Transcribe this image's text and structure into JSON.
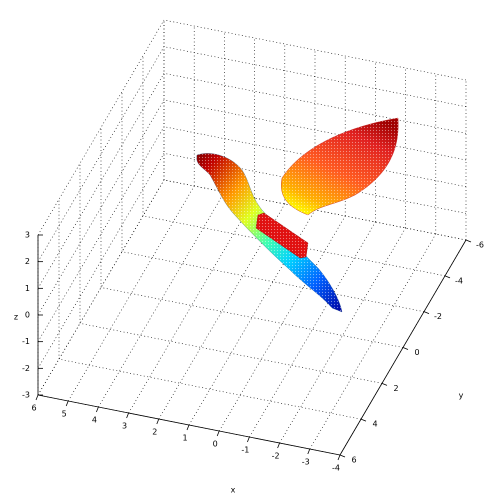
{
  "chart_data": {
    "type": "surface3d",
    "xlabel": "x",
    "ylabel": "y",
    "zlabel": "z",
    "x_ticks": [
      "-4",
      "-3",
      "-2",
      "-1",
      "0",
      "1",
      "2",
      "3",
      "4",
      "5",
      "6"
    ],
    "y_ticks": [
      "-6",
      "-4",
      "-2",
      "0",
      "2",
      "4",
      "6"
    ],
    "z_ticks": [
      "-3",
      "-2",
      "-1",
      "0",
      "1",
      "2",
      "3"
    ],
    "xlim": [
      -4,
      6
    ],
    "ylim": [
      -6,
      6
    ],
    "zlim": [
      -3,
      3
    ],
    "grid": true,
    "colormap": [
      "#00008f",
      "#0050ff",
      "#00dfff",
      "#70ff8f",
      "#ffef00",
      "#ff7000",
      "#d00000",
      "#800000"
    ],
    "surfaces": [
      {
        "description_shape": "curved ribbon from red tip down through yellow/cyan to blue tip",
        "points": [
          {
            "x": 4.5,
            "y": -2.5,
            "z": 2.9
          },
          {
            "x": 3.5,
            "y": -2.0,
            "z": 2.6
          },
          {
            "x": 2.5,
            "y": -1.0,
            "z": 1.2
          },
          {
            "x": 1.5,
            "y": 0.0,
            "z": 0.0
          },
          {
            "x": 0.5,
            "y": 1.0,
            "z": -0.8
          },
          {
            "x": -0.5,
            "y": 2.0,
            "z": -1.6
          },
          {
            "x": -1.5,
            "y": 2.5,
            "z": -2.2
          }
        ]
      },
      {
        "description_shape": "upper wing surface, yellow at bottom to dark red at top",
        "z_range": [
          0.5,
          3.0
        ]
      },
      {
        "description_shape": "small red rectangular patch in the middle",
        "z_range": [
          1.5,
          2.0
        ]
      }
    ]
  }
}
